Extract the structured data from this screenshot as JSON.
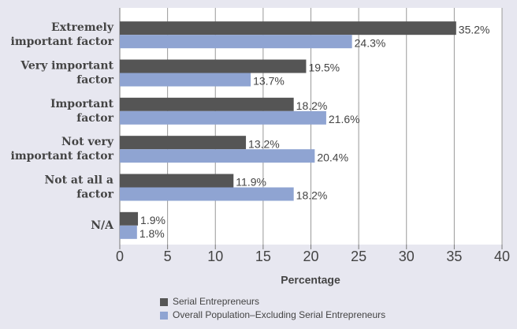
{
  "chart_data": {
    "type": "bar",
    "orientation": "horizontal",
    "categories": [
      [
        "Extremely",
        "important factor"
      ],
      [
        "Very important",
        "factor"
      ],
      [
        "Important",
        "factor"
      ],
      [
        "Not very",
        "important factor"
      ],
      [
        "Not at all a",
        "factor"
      ],
      [
        "N/A"
      ]
    ],
    "series": [
      {
        "name": "Serial Entrepreneurs",
        "color": "#555555",
        "values": [
          35.2,
          19.5,
          18.2,
          13.2,
          11.9,
          1.9
        ],
        "value_labels": [
          "35.2%",
          "19.5%",
          "18.2%",
          "13.2%",
          "11.9%",
          "1.9%"
        ]
      },
      {
        "name": "Overall Population–Excluding Serial Entrepreneurs",
        "color": "#8fa4d2",
        "values": [
          24.3,
          13.7,
          21.6,
          20.4,
          18.2,
          1.8
        ],
        "value_labels": [
          "24.3%",
          "13.7%",
          "21.6%",
          "20.4%",
          "18.2%",
          "1.8%"
        ]
      }
    ],
    "x_label": "Percentage",
    "xlim": [
      0,
      40
    ],
    "xticks": [
      0,
      5,
      10,
      15,
      20,
      25,
      30,
      35,
      40
    ],
    "grid": true
  }
}
